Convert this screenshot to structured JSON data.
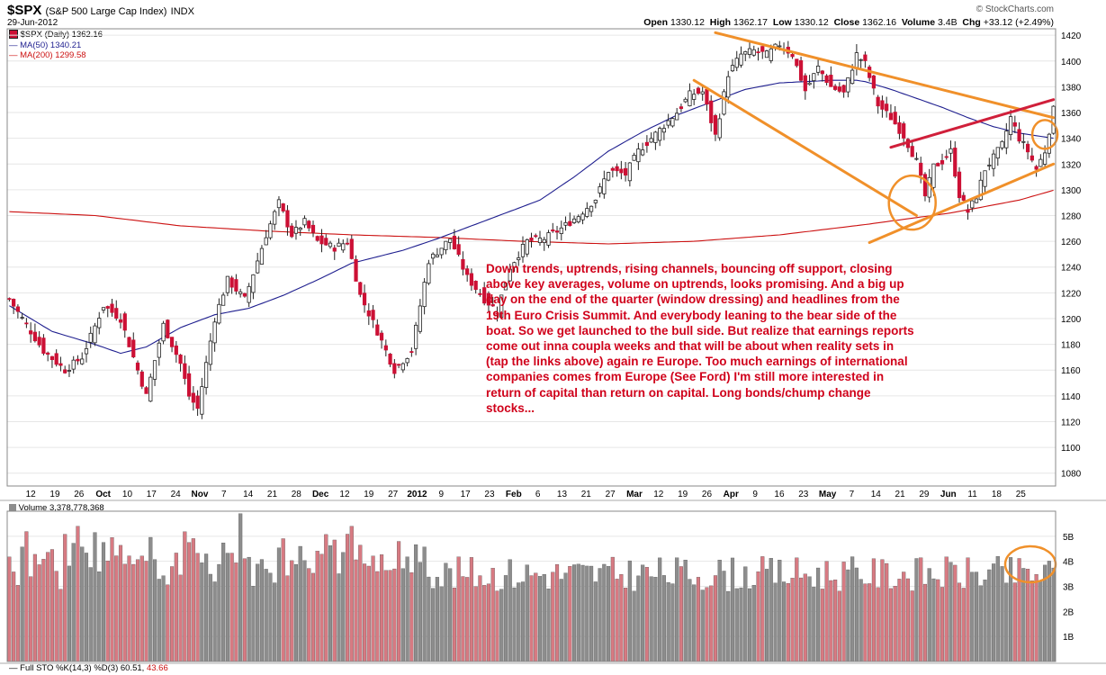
{
  "header": {
    "symbol": "$SPX",
    "name": "(S&P 500 Large Cap Index)",
    "exchange": "INDX",
    "date": "29-Jun-2012",
    "brand": "© StockCharts.com",
    "ohlc": {
      "open_label": "Open",
      "open": "1330.12",
      "high_label": "High",
      "high": "1362.17",
      "low_label": "Low",
      "low": "1330.12",
      "close_label": "Close",
      "close": "1362.16",
      "volume_label": "Volume",
      "volume": "3.4B",
      "chg_label": "Chg",
      "chg": "+33.12 (+2.49%)"
    }
  },
  "legend": {
    "price": "$SPX (Daily) 1362.16",
    "ma50": "MA(50) 1340.21",
    "ma200": "MA(200) 1299.58",
    "volume": "Volume 3,378,778,368",
    "stoch_prefix": "Full STO %K(14,3) %D(3)",
    "stoch_k": "60.51",
    "stoch_d": "43.66"
  },
  "annotation": "Down trends, uptrends, rising channels, bouncing off support, closing above key averages, volume on uptrends, looks promising. And a big up day on the end of the quarter (window dressing) and headlines from the 19th  Euro Crisis Summit. And everybody leaning to the bear side of the boat. So we get launched to the bull side.  But realize that earnings reports  come out inna coupla weeks and that will be about when reality sets in (tap the links above) again re Europe. Too much earnings of international companies comes from Europe (See Ford) I'm still more interested in return of capital than return on capital.  Long bonds/chump change stocks...",
  "colors": {
    "up": "#ffffff",
    "down": "#cc1035",
    "candle_edge": "#222222",
    "ma50": "#1f1f8f",
    "ma200": "#cc1111",
    "trendline": "#f0902a",
    "channel_top": "#d01f3a",
    "vol_up": "#8d8d8d",
    "vol_down": "#d77a82",
    "annotation": "#d0021b",
    "grid": "#e6e6e6"
  },
  "chart_data": [
    {
      "type": "candlestick",
      "title": "$SPX (S&P 500 Large Cap Index)",
      "ylim": [
        1070,
        1425
      ],
      "y_ticks": [
        1080,
        1100,
        1120,
        1140,
        1160,
        1180,
        1200,
        1220,
        1240,
        1260,
        1280,
        1300,
        1320,
        1340,
        1360,
        1380,
        1400,
        1420
      ],
      "x_tick_labels": [
        "12",
        "19",
        "26",
        "Oct",
        "10",
        "17",
        "24",
        "Nov",
        "7",
        "14",
        "21",
        "28",
        "Dec",
        "12",
        "19",
        "27",
        "2012",
        "9",
        "17",
        "23",
        "Feb",
        "6",
        "13",
        "21",
        "27",
        "Mar",
        "12",
        "19",
        "26",
        "Apr",
        "9",
        "16",
        "23",
        "May",
        "7",
        "14",
        "21",
        "29",
        "Jun",
        "11",
        "18",
        "25"
      ],
      "x_tick_bold": [
        "Oct",
        "Nov",
        "Dec",
        "2012",
        "Feb",
        "Mar",
        "Apr",
        "May",
        "Jun"
      ],
      "close_path": [
        [
          0,
          1215
        ],
        [
          8,
          1175
        ],
        [
          13,
          1160
        ],
        [
          17,
          1170
        ],
        [
          22,
          1210
        ],
        [
          26,
          1200
        ],
        [
          29,
          1170
        ],
        [
          32,
          1140
        ],
        [
          36,
          1195
        ],
        [
          40,
          1165
        ],
        [
          42,
          1140
        ],
        [
          44,
          1130
        ],
        [
          48,
          1200
        ],
        [
          51,
          1230
        ],
        [
          55,
          1215
        ],
        [
          60,
          1265
        ],
        [
          63,
          1290
        ],
        [
          66,
          1265
        ],
        [
          69,
          1275
        ],
        [
          72,
          1260
        ],
        [
          76,
          1255
        ],
        [
          79,
          1260
        ],
        [
          82,
          1218
        ],
        [
          86,
          1190
        ],
        [
          90,
          1160
        ],
        [
          94,
          1175
        ],
        [
          98,
          1245
        ],
        [
          103,
          1262
        ],
        [
          107,
          1232
        ],
        [
          111,
          1215
        ],
        [
          114,
          1206
        ],
        [
          117,
          1240
        ],
        [
          121,
          1260
        ],
        [
          125,
          1262
        ],
        [
          129,
          1270
        ],
        [
          133,
          1280
        ],
        [
          137,
          1293
        ],
        [
          140,
          1315
        ],
        [
          144,
          1312
        ],
        [
          147,
          1330
        ],
        [
          150,
          1340
        ],
        [
          153,
          1350
        ],
        [
          156,
          1360
        ],
        [
          159,
          1374
        ],
        [
          162,
          1376
        ],
        [
          165,
          1342
        ],
        [
          168,
          1390
        ],
        [
          171,
          1405
        ],
        [
          174,
          1408
        ],
        [
          177,
          1405
        ],
        [
          180,
          1413
        ],
        [
          183,
          1405
        ],
        [
          186,
          1377
        ],
        [
          189,
          1395
        ],
        [
          192,
          1380
        ],
        [
          195,
          1375
        ],
        [
          198,
          1405
        ],
        [
          200,
          1398
        ],
        [
          203,
          1366
        ],
        [
          206,
          1356
        ],
        [
          209,
          1342
        ],
        [
          212,
          1322
        ],
        [
          214,
          1295
        ],
        [
          216,
          1318
        ],
        [
          218,
          1322
        ],
        [
          220,
          1330
        ],
        [
          222,
          1296
        ],
        [
          224,
          1283
        ],
        [
          226,
          1295
        ],
        [
          228,
          1316
        ],
        [
          230,
          1325
        ],
        [
          232,
          1335
        ],
        [
          234,
          1356
        ],
        [
          236,
          1340
        ],
        [
          238,
          1330
        ],
        [
          240,
          1316
        ],
        [
          242,
          1330
        ],
        [
          244,
          1362
        ]
      ],
      "ma50_path": [
        [
          0,
          1210
        ],
        [
          10,
          1190
        ],
        [
          20,
          1180
        ],
        [
          26,
          1173
        ],
        [
          32,
          1178
        ],
        [
          40,
          1193
        ],
        [
          48,
          1203
        ],
        [
          56,
          1208
        ],
        [
          64,
          1218
        ],
        [
          72,
          1230
        ],
        [
          80,
          1243
        ],
        [
          86,
          1248
        ],
        [
          92,
          1253
        ],
        [
          100,
          1262
        ],
        [
          108,
          1272
        ],
        [
          116,
          1282
        ],
        [
          124,
          1292
        ],
        [
          132,
          1310
        ],
        [
          140,
          1330
        ],
        [
          148,
          1345
        ],
        [
          156,
          1358
        ],
        [
          164,
          1368
        ],
        [
          172,
          1378
        ],
        [
          180,
          1383
        ],
        [
          186,
          1384
        ],
        [
          192,
          1385
        ],
        [
          198,
          1385
        ],
        [
          200,
          1384
        ],
        [
          206,
          1378
        ],
        [
          212,
          1371
        ],
        [
          218,
          1364
        ],
        [
          224,
          1356
        ],
        [
          230,
          1349
        ],
        [
          236,
          1344
        ],
        [
          244,
          1340
        ]
      ],
      "ma200_path": [
        [
          0,
          1283
        ],
        [
          20,
          1280
        ],
        [
          40,
          1272
        ],
        [
          60,
          1268
        ],
        [
          80,
          1265
        ],
        [
          100,
          1263
        ],
        [
          120,
          1260
        ],
        [
          140,
          1258
        ],
        [
          160,
          1260
        ],
        [
          180,
          1265
        ],
        [
          200,
          1273
        ],
        [
          220,
          1282
        ],
        [
          236,
          1292
        ],
        [
          244,
          1299.6
        ]
      ],
      "annotations": [
        "falling channel (Apr-Jun)",
        "rising channel (Jun)",
        "circled low and breakout"
      ]
    },
    {
      "type": "bar",
      "title": "Volume",
      "ylim": [
        0,
        6
      ],
      "y_ticks": [
        "1B",
        "2B",
        "3B",
        "4B",
        "5B"
      ],
      "last_value": "3,378,778,368"
    }
  ]
}
